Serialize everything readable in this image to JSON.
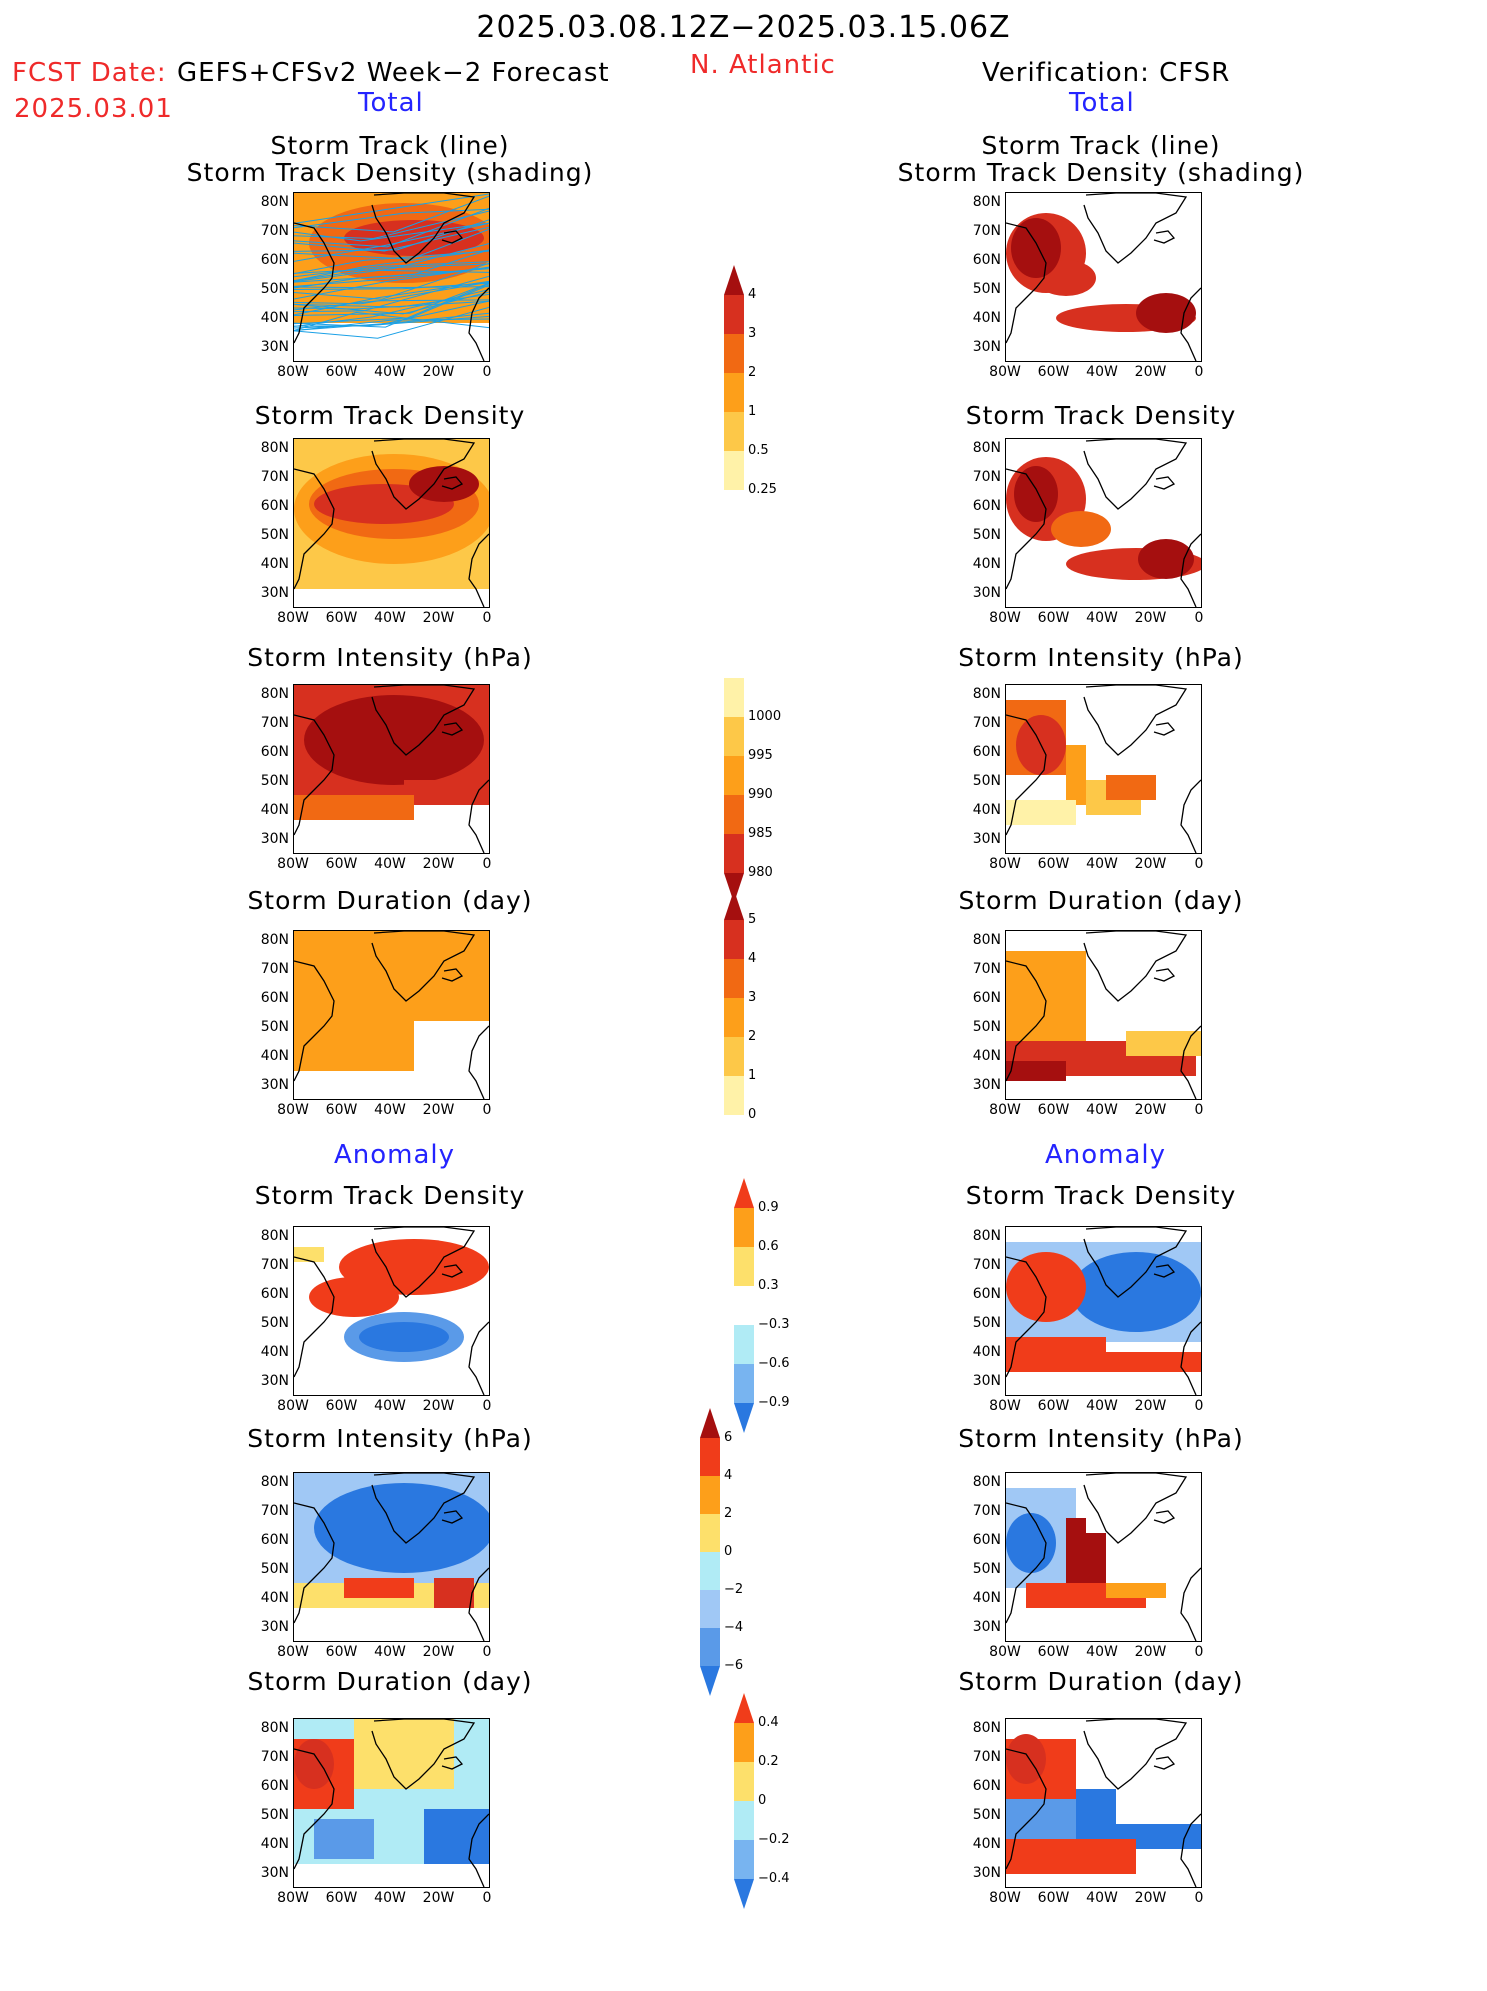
{
  "header": {
    "title": "2025.03.08.12Z−2025.03.15.06Z",
    "region": "N. Atlantic",
    "fcst_date_label": "FCST Date:",
    "model": "GEFS+CFSv2 Week−2 Forecast",
    "fcst_date": "2025.03.01",
    "verification": "Verification: CFSR",
    "left_section_total": "Total",
    "right_section_total": "Total",
    "left_section_anomaly": "Anomaly",
    "right_section_anomaly": "Anomaly"
  },
  "axes": {
    "lat_labels": [
      "80N",
      "70N",
      "60N",
      "50N",
      "40N",
      "30N"
    ],
    "lon_labels": [
      "80W",
      "60W",
      "40W",
      "20W",
      "0"
    ]
  },
  "panels": {
    "track": {
      "title_line1": "Storm Track (line)",
      "title_line2": "Storm Track Density (shading)"
    },
    "density": {
      "title": "Storm Track Density"
    },
    "intensity": {
      "title": "Storm Intensity (hPa)"
    },
    "duration": {
      "title": "Storm Duration (day)"
    },
    "anom_density": {
      "title": "Storm Track Density"
    },
    "anom_intensity": {
      "title": "Storm Intensity (hPa)"
    },
    "anom_duration": {
      "title": "Storm Duration (day)"
    }
  },
  "colorbars": {
    "density": {
      "labels": [
        "4",
        "3",
        "2",
        "1",
        "0.5",
        "0.25"
      ],
      "colors": [
        "#a50f0f",
        "#d7301f",
        "#f16913",
        "#fd9f1a",
        "#fdc848",
        "#fff2a8"
      ]
    },
    "intensity": {
      "labels": [
        "1000",
        "995",
        "990",
        "985",
        "980"
      ],
      "colors": [
        "#fff2a8",
        "#fdc848",
        "#fd9f1a",
        "#f16913",
        "#d7301f",
        "#a50f0f"
      ]
    },
    "duration": {
      "labels": [
        "5",
        "4",
        "3",
        "2",
        "1",
        "0"
      ],
      "colors": [
        "#a50f0f",
        "#d7301f",
        "#f16913",
        "#fd9f1a",
        "#fdc848",
        "#fff2a8"
      ]
    },
    "anom_density": {
      "labels": [
        "0.9",
        "0.6",
        "0.3",
        "−0.3",
        "−0.6",
        "−0.9"
      ],
      "colors": [
        "#f03c1a",
        "#fd9f1a",
        "#fde06b",
        "#ffffff",
        "#b0ebf5",
        "#78b4f0",
        "#2a78e0"
      ]
    },
    "anom_intensity": {
      "labels": [
        "6",
        "4",
        "2",
        "0",
        "−2",
        "−4",
        "−6"
      ],
      "colors": [
        "#a50f0f",
        "#f03c1a",
        "#fd9f1a",
        "#fde06b",
        "#b0ebf5",
        "#a0c8f5",
        "#5a9ae8",
        "#2a78e0"
      ]
    },
    "anom_duration": {
      "labels": [
        "0.4",
        "0.2",
        "0",
        "−0.2",
        "−0.4"
      ],
      "colors": [
        "#f03c1a",
        "#fd9f1a",
        "#fde06b",
        "#b0ebf5",
        "#78b4f0",
        "#2a78e0"
      ]
    }
  }
}
